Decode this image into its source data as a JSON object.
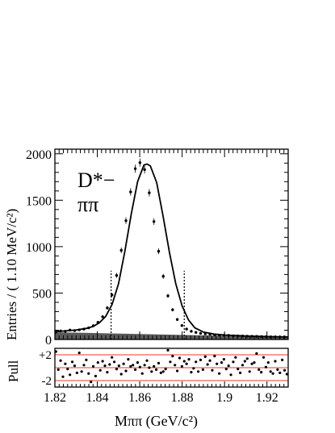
{
  "chart_data": [
    {
      "type": "line",
      "panel": "main",
      "annotation": {
        "line1": "D*−",
        "line2": "ππ"
      },
      "ylabel": "Entries / ( 1.10 MeV/c²)",
      "xlim": [
        1.82,
        1.93
      ],
      "ylim": [
        0,
        2050
      ],
      "yticks": [
        "0",
        "500",
        "1000",
        "1500",
        "2000"
      ],
      "signal_window": [
        1.8465,
        1.881
      ],
      "series": [
        {
          "style": "points",
          "x": [
            1.8205,
            1.8227,
            1.8249,
            1.8271,
            1.8293,
            1.8315,
            1.8337,
            1.8359,
            1.8381,
            1.8403,
            1.8425,
            1.8447,
            1.8469,
            1.8491,
            1.8513,
            1.8535,
            1.8557,
            1.8579,
            1.8601,
            1.8623,
            1.8645,
            1.8667,
            1.8689,
            1.8711,
            1.8733,
            1.8755,
            1.8777,
            1.8799,
            1.8821,
            1.8843,
            1.8865,
            1.8887,
            1.8909,
            1.8931,
            1.8953,
            1.8975,
            1.8997,
            1.9019,
            1.9041,
            1.9063,
            1.9085,
            1.9107,
            1.9129,
            1.9151,
            1.9173,
            1.9195,
            1.9217,
            1.9239,
            1.9261,
            1.9283
          ],
          "y": [
            80,
            92,
            88,
            101,
            96,
            104,
            112,
            125,
            148,
            185,
            245,
            340,
            480,
            690,
            960,
            1280,
            1590,
            1840,
            1905,
            1830,
            1580,
            1270,
            950,
            680,
            470,
            320,
            215,
            150,
            112,
            88,
            76,
            66,
            60,
            55,
            50,
            47,
            45,
            44,
            40,
            38,
            37,
            35,
            34,
            33,
            31,
            30,
            28,
            28,
            27,
            26
          ]
        },
        {
          "style": "line",
          "x": [
            1.82,
            1.825,
            1.83,
            1.835,
            1.838,
            1.841,
            1.844,
            1.847,
            1.85,
            1.853,
            1.856,
            1.859,
            1.862,
            1.8635,
            1.865,
            1.868,
            1.871,
            1.874,
            1.877,
            1.88,
            1.883,
            1.886,
            1.89,
            1.895,
            1.9,
            1.905,
            1.91,
            1.915,
            1.92,
            1.925,
            1.93
          ],
          "y": [
            85,
            92,
            102,
            120,
            140,
            180,
            250,
            380,
            600,
            950,
            1350,
            1700,
            1880,
            1890,
            1870,
            1690,
            1330,
            940,
            600,
            360,
            210,
            125,
            80,
            58,
            48,
            42,
            38,
            34,
            31,
            29,
            27
          ]
        },
        {
          "style": "area",
          "x": [
            1.82,
            1.93
          ],
          "y": [
            78,
            24
          ]
        }
      ]
    },
    {
      "type": "scatter",
      "panel": "pull",
      "ylabel": "Pull",
      "xlabel": "Mππ (GeV/c²)",
      "xlim": [
        1.82,
        1.93
      ],
      "ylim": [
        -3,
        3
      ],
      "yticks": [
        "+2",
        "-2"
      ],
      "xticks": [
        "1.82",
        "1.84",
        "1.86",
        "1.88",
        "1.9",
        "1.92"
      ],
      "reference_lines": [
        2,
        0,
        -2
      ],
      "reference_color": "#e8392c",
      "series": [
        {
          "style": "points",
          "x": [
            1.8205,
            1.8216,
            1.8227,
            1.8238,
            1.8249,
            1.826,
            1.8271,
            1.8282,
            1.8293,
            1.8304,
            1.8315,
            1.8326,
            1.8337,
            1.8348,
            1.8359,
            1.837,
            1.8381,
            1.8392,
            1.8403,
            1.8414,
            1.8425,
            1.8436,
            1.8447,
            1.8458,
            1.8469,
            1.848,
            1.8491,
            1.8502,
            1.8513,
            1.8524,
            1.8535,
            1.8546,
            1.8557,
            1.8568,
            1.8579,
            1.859,
            1.8601,
            1.8612,
            1.8623,
            1.8634,
            1.8645,
            1.8656,
            1.8667,
            1.8678,
            1.8689,
            1.87,
            1.8711,
            1.8722,
            1.8733,
            1.8744,
            1.8755,
            1.8766,
            1.8777,
            1.8788,
            1.8799,
            1.881,
            1.8821,
            1.8832,
            1.8843,
            1.8854,
            1.8865,
            1.8876,
            1.8887,
            1.8898,
            1.8909,
            1.892,
            1.8931,
            1.8942,
            1.8953,
            1.8964,
            1.8975,
            1.8986,
            1.8997,
            1.9008,
            1.9019,
            1.903,
            1.9041,
            1.9052,
            1.9063,
            1.9074,
            1.9085,
            1.9096,
            1.9107,
            1.9118,
            1.9129,
            1.914,
            1.9151,
            1.9162,
            1.9173,
            1.9184,
            1.9195,
            1.9206,
            1.9217,
            1.9228,
            1.9239,
            1.925,
            1.9261,
            1.9272,
            1.9283,
            1.9294
          ],
          "y": [
            2.5,
            -0.3,
            1.1,
            -1.4,
            0.6,
            -0.2,
            -1.1,
            0.9,
            0.3,
            -0.8,
            2.3,
            -0.6,
            0.4,
            1.2,
            -0.9,
            -2.2,
            0.2,
            -1.3,
            0.8,
            -0.4,
            1.0,
            0.3,
            -0.7,
            0.5,
            1.6,
            0.9,
            -0.2,
            0.3,
            -1.0,
            0.6,
            -0.5,
            1.3,
            0.2,
            0.4,
            -0.3,
            0.8,
            0.1,
            -0.9,
            0.4,
            1.1,
            0.0,
            -0.6,
            0.2,
            -0.3,
            0.7,
            -0.8,
            -0.6,
            -0.2,
            2.7,
            0.9,
            1.8,
            0.4,
            -0.5,
            1.5,
            0.2,
            1.0,
            0.6,
            1.3,
            -0.7,
            -0.1,
            0.9,
            -0.6,
            1.2,
            -0.3,
            1.7,
            0.5,
            1.1,
            -0.4,
            1.8,
            0.6,
            -0.9,
            0.8,
            1.3,
            -0.2,
            0.3,
            -1.1,
            0.9,
            1.6,
            -0.2,
            -0.8,
            0.4,
            1.0,
            1.4,
            -0.6,
            0.6,
            0.8,
            2.2,
            -0.3,
            -0.7,
            1.6,
            0.1,
            0.8,
            -0.6,
            -0.9,
            1.0,
            -0.3,
            -0.8,
            1.2,
            -0.4,
            -1.0
          ]
        }
      ]
    }
  ]
}
